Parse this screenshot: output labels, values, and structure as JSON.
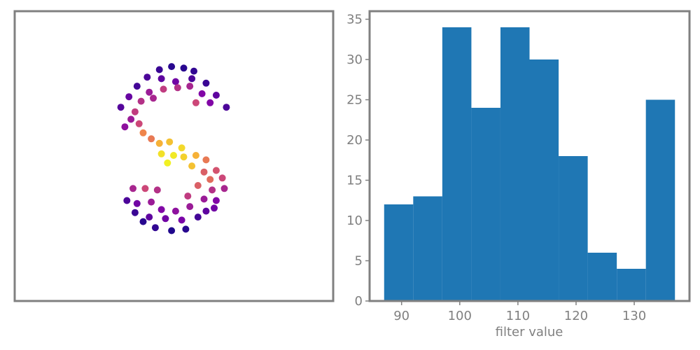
{
  "chart_data": [
    {
      "type": "scatter",
      "title": "",
      "xlabel": "",
      "ylabel": "",
      "axes_visible": false,
      "colormap": "plasma",
      "color_range": [
        87,
        137
      ],
      "points": [
        {
          "x": -0.35,
          "y": 2.85,
          "v": 92
        },
        {
          "x": -0.05,
          "y": 2.95,
          "v": 90
        },
        {
          "x": 0.25,
          "y": 2.9,
          "v": 90
        },
        {
          "x": 0.5,
          "y": 2.8,
          "v": 91
        },
        {
          "x": -0.65,
          "y": 2.6,
          "v": 94
        },
        {
          "x": -0.3,
          "y": 2.55,
          "v": 96
        },
        {
          "x": 0.05,
          "y": 2.45,
          "v": 98
        },
        {
          "x": 0.45,
          "y": 2.55,
          "v": 94
        },
        {
          "x": 0.8,
          "y": 2.4,
          "v": 92
        },
        {
          "x": -0.9,
          "y": 2.3,
          "v": 93
        },
        {
          "x": -0.6,
          "y": 2.1,
          "v": 104
        },
        {
          "x": -0.25,
          "y": 2.2,
          "v": 110
        },
        {
          "x": 0.1,
          "y": 2.25,
          "v": 108
        },
        {
          "x": 0.4,
          "y": 2.3,
          "v": 106
        },
        {
          "x": 0.7,
          "y": 2.05,
          "v": 100
        },
        {
          "x": 1.05,
          "y": 2.0,
          "v": 96
        },
        {
          "x": -1.1,
          "y": 1.95,
          "v": 97
        },
        {
          "x": -0.8,
          "y": 1.8,
          "v": 108
        },
        {
          "x": -0.5,
          "y": 1.9,
          "v": 106
        },
        {
          "x": 0.55,
          "y": 1.75,
          "v": 112
        },
        {
          "x": 0.9,
          "y": 1.75,
          "v": 100
        },
        {
          "x": 1.3,
          "y": 1.6,
          "v": 94
        },
        {
          "x": -1.3,
          "y": 1.6,
          "v": 95
        },
        {
          "x": -0.95,
          "y": 1.45,
          "v": 110
        },
        {
          "x": -1.05,
          "y": 1.2,
          "v": 104
        },
        {
          "x": -0.85,
          "y": 1.05,
          "v": 112
        },
        {
          "x": -1.2,
          "y": 0.95,
          "v": 102
        },
        {
          "x": -0.75,
          "y": 0.75,
          "v": 122
        },
        {
          "x": -0.55,
          "y": 0.55,
          "v": 120
        },
        {
          "x": -0.35,
          "y": 0.4,
          "v": 128
        },
        {
          "x": -0.1,
          "y": 0.45,
          "v": 130
        },
        {
          "x": 0.2,
          "y": 0.25,
          "v": 133
        },
        {
          "x": -0.3,
          "y": 0.05,
          "v": 134
        },
        {
          "x": 0.0,
          "y": 0.0,
          "v": 135
        },
        {
          "x": 0.25,
          "y": -0.05,
          "v": 132
        },
        {
          "x": 0.55,
          "y": 0.0,
          "v": 128
        },
        {
          "x": 0.8,
          "y": -0.15,
          "v": 120
        },
        {
          "x": -0.15,
          "y": -0.25,
          "v": 136
        },
        {
          "x": 0.45,
          "y": -0.35,
          "v": 130
        },
        {
          "x": 0.75,
          "y": -0.55,
          "v": 116
        },
        {
          "x": 1.05,
          "y": -0.5,
          "v": 114
        },
        {
          "x": 0.9,
          "y": -0.8,
          "v": 118
        },
        {
          "x": 1.2,
          "y": -0.75,
          "v": 112
        },
        {
          "x": 0.6,
          "y": -1.0,
          "v": 116
        },
        {
          "x": 0.95,
          "y": -1.15,
          "v": 108
        },
        {
          "x": 1.25,
          "y": -1.1,
          "v": 106
        },
        {
          "x": -0.7,
          "y": -1.1,
          "v": 112
        },
        {
          "x": -0.4,
          "y": -1.15,
          "v": 108
        },
        {
          "x": -1.0,
          "y": -1.1,
          "v": 106
        },
        {
          "x": 0.35,
          "y": -1.35,
          "v": 110
        },
        {
          "x": 0.75,
          "y": -1.45,
          "v": 104
        },
        {
          "x": 1.05,
          "y": -1.5,
          "v": 100
        },
        {
          "x": -1.15,
          "y": -1.5,
          "v": 94
        },
        {
          "x": -0.9,
          "y": -1.6,
          "v": 98
        },
        {
          "x": -0.55,
          "y": -1.55,
          "v": 104
        },
        {
          "x": -0.3,
          "y": -1.8,
          "v": 100
        },
        {
          "x": 0.05,
          "y": -1.85,
          "v": 102
        },
        {
          "x": 0.4,
          "y": -1.7,
          "v": 104
        },
        {
          "x": 0.8,
          "y": -1.85,
          "v": 96
        },
        {
          "x": 1.0,
          "y": -1.75,
          "v": 98
        },
        {
          "x": -0.95,
          "y": -1.9,
          "v": 92
        },
        {
          "x": -0.6,
          "y": -2.05,
          "v": 96
        },
        {
          "x": -0.2,
          "y": -2.1,
          "v": 98
        },
        {
          "x": 0.2,
          "y": -2.15,
          "v": 99
        },
        {
          "x": 0.6,
          "y": -2.05,
          "v": 93
        },
        {
          "x": -0.45,
          "y": -2.4,
          "v": 91
        },
        {
          "x": -0.05,
          "y": -2.5,
          "v": 89
        },
        {
          "x": 0.3,
          "y": -2.45,
          "v": 90
        },
        {
          "x": -0.75,
          "y": -2.2,
          "v": 90
        }
      ]
    },
    {
      "type": "bar",
      "title": "",
      "xlabel": "filter value",
      "ylabel": "",
      "color": "#1f77b4",
      "bin_edges": [
        87,
        92,
        97,
        102,
        107,
        112,
        117,
        122,
        127,
        132,
        137
      ],
      "values": [
        12,
        13,
        34,
        24,
        34,
        30,
        18,
        6,
        4,
        25
      ],
      "xlim": [
        84.5,
        139.5
      ],
      "ylim": [
        0,
        36
      ],
      "xticks": [
        90,
        100,
        110,
        120,
        130
      ],
      "yticks": [
        0,
        5,
        10,
        15,
        20,
        25,
        30,
        35
      ]
    }
  ]
}
